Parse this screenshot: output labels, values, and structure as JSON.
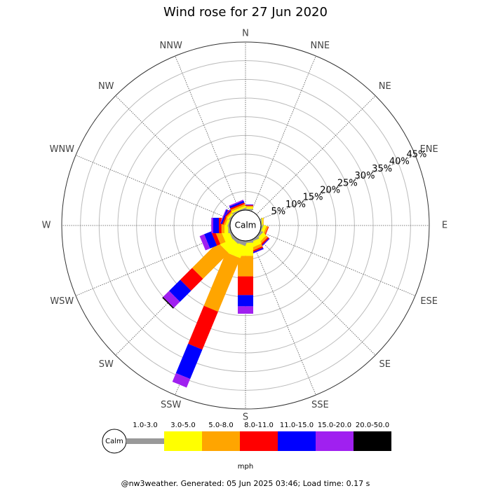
{
  "chart_data": {
    "type": "windrose",
    "title": "Wind rose for 27 Jun 2020",
    "calm_label": "Calm",
    "categories": [
      "N",
      "NNE",
      "NE",
      "ENE",
      "E",
      "ESE",
      "SE",
      "SSE",
      "S",
      "SSW",
      "SW",
      "WSW",
      "W",
      "WNW",
      "NW",
      "NNW"
    ],
    "rlim": [
      0,
      45
    ],
    "rticks": [
      {
        "value": 5,
        "label": "5%"
      },
      {
        "value": 10,
        "label": "10%"
      },
      {
        "value": 15,
        "label": "15%"
      },
      {
        "value": 20,
        "label": "20%"
      },
      {
        "value": 25,
        "label": "25%"
      },
      {
        "value": 30,
        "label": "30%"
      },
      {
        "value": 35,
        "label": "35%"
      },
      {
        "value": 40,
        "label": "40%"
      },
      {
        "value": 45,
        "label": "45%"
      }
    ],
    "series": [
      {
        "name": "1.0-3.0",
        "color": "#999999",
        "values": [
          0.3,
          0,
          0,
          0,
          0.2,
          0.3,
          0.5,
          0.5,
          0.5,
          1,
          0.8,
          0.5,
          0.5,
          0.3,
          0.3,
          0.3
        ]
      },
      {
        "name": "3.0-5.0",
        "color": "#ffff00",
        "values": [
          0.5,
          0,
          0,
          0,
          0.3,
          0.8,
          1.2,
          1.5,
          3.5,
          3.5,
          3.5,
          2,
          1,
          0.6,
          0.5,
          0.5
        ]
      },
      {
        "name": "5.0-8.0",
        "color": "#ffa500",
        "values": [
          0.3,
          0,
          0,
          0,
          0.2,
          0.5,
          0.6,
          0.8,
          5.5,
          15.5,
          9.7,
          1.5,
          0.8,
          0.5,
          0.4,
          0.5
        ]
      },
      {
        "name": "8.0-11.0",
        "color": "#ff0000",
        "values": [
          0.2,
          0,
          0,
          0,
          0,
          0.2,
          0.4,
          0.4,
          5,
          11,
          4.5,
          1,
          0.7,
          0.4,
          0.3,
          0.4
        ]
      },
      {
        "name": "11.0-15.0",
        "color": "#0000ff",
        "values": [
          0.1,
          0,
          0,
          0,
          0,
          0,
          0.2,
          0.3,
          3,
          8.5,
          4.2,
          2,
          1.5,
          0.4,
          0.2,
          0.5
        ]
      },
      {
        "name": "15.0-20.0",
        "color": "#a020f0",
        "values": [
          0.1,
          0,
          0,
          0,
          0,
          0,
          0.1,
          0.1,
          2,
          2.5,
          2.3,
          1.3,
          0.5,
          0.2,
          0.1,
          0.3
        ]
      },
      {
        "name": "20.0-50.0",
        "color": "#000000",
        "values": [
          0,
          0,
          0,
          0,
          0,
          0,
          0,
          0,
          0,
          0,
          0.3,
          0,
          0,
          0,
          0,
          0
        ]
      }
    ],
    "unit": "mph",
    "footer": "@nw3weather. Generated: 05 Jun 2025 03:46; Load time: 0.17 s"
  }
}
